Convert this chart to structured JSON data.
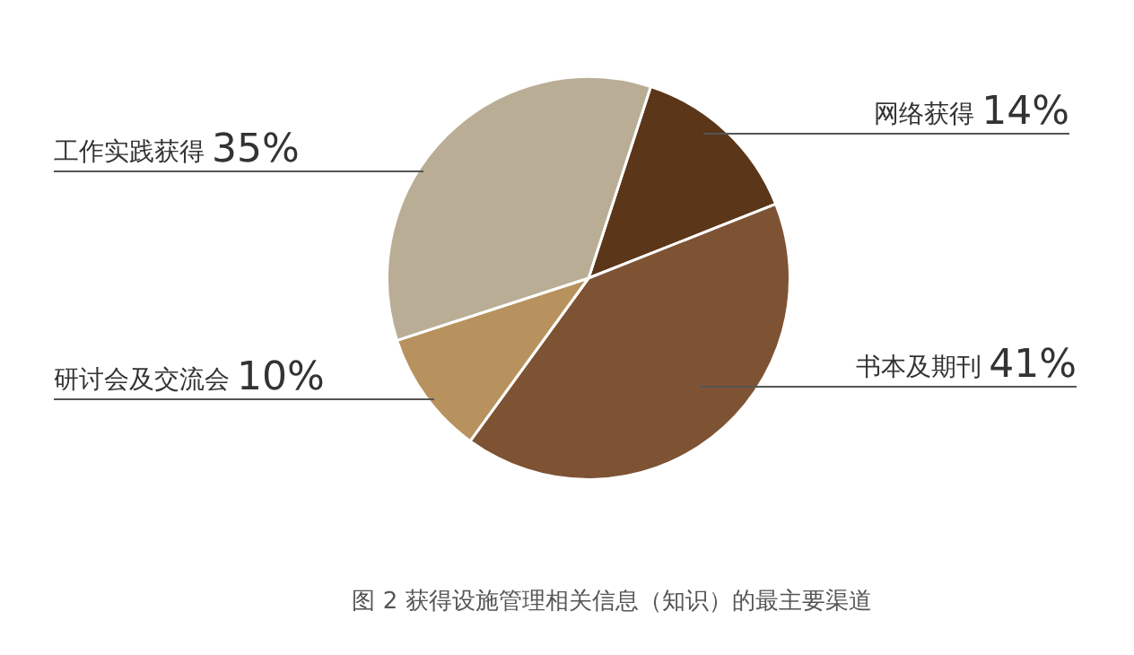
{
  "chart_data": {
    "type": "pie",
    "categories": [
      "网络获得",
      "书本及期刊",
      "研讨会及交流会",
      "工作实践获得"
    ],
    "values": [
      14,
      41,
      10,
      35
    ],
    "value_labels": [
      "14%",
      "41%",
      "10%",
      "35%"
    ],
    "colors": [
      "#5b3619",
      "#7e5334",
      "#b8925e",
      "#b9ae95"
    ],
    "legend": false,
    "annotations": [
      "图 2  获得设施管理相关信息（知识）的最主要渠道"
    ]
  }
}
